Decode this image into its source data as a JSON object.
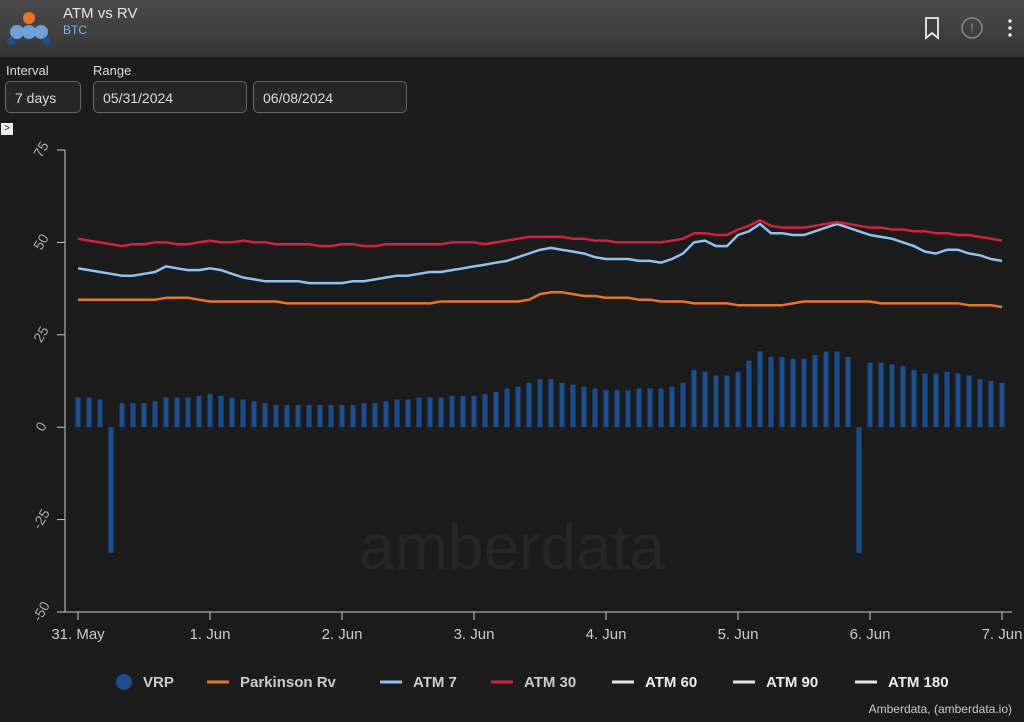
{
  "header": {
    "title": "ATM vs RV",
    "subtitle": "BTC"
  },
  "controls": {
    "interval_label": "Interval",
    "interval_value": "7 days",
    "range_label": "Range",
    "range_start": "05/31/2024",
    "range_end": "06/08/2024"
  },
  "watermark": "amberdata",
  "credit": "Amberdata, (amberdata.io)",
  "chart_data": {
    "type": "bar-line",
    "categories": [
      "31. May",
      null,
      null,
      null,
      null,
      null,
      null,
      null,
      null,
      null,
      null,
      null,
      "1. Jun",
      null,
      null,
      null,
      null,
      null,
      null,
      null,
      null,
      null,
      null,
      null,
      "2. Jun",
      null,
      null,
      null,
      null,
      null,
      null,
      null,
      null,
      null,
      null,
      null,
      "3. Jun",
      null,
      null,
      null,
      null,
      null,
      null,
      null,
      null,
      null,
      null,
      null,
      "4. Jun",
      null,
      null,
      null,
      null,
      null,
      null,
      null,
      null,
      null,
      null,
      null,
      "5. Jun",
      null,
      null,
      null,
      null,
      null,
      null,
      null,
      null,
      null,
      null,
      null,
      "6. Jun",
      null,
      null,
      null,
      null,
      null,
      null,
      null,
      null,
      null,
      null,
      null,
      "7. Jun"
    ],
    "ylim": [
      -50,
      75
    ],
    "yticks": [
      -50,
      -25,
      0,
      25,
      50,
      75
    ],
    "grid": false,
    "series": [
      {
        "name": "VRP",
        "type": "bar",
        "color": "#1c4f8f",
        "values": [
          8,
          8,
          7.5,
          -34,
          6.5,
          6.5,
          6.5,
          7,
          8,
          8,
          8,
          8.5,
          9,
          8.5,
          8,
          7.5,
          7,
          6.5,
          6,
          6,
          6,
          6,
          6,
          6,
          6,
          6,
          6.5,
          6.5,
          7,
          7.5,
          7.5,
          8,
          8,
          8,
          8.5,
          8.5,
          8.5,
          9,
          9.5,
          10.5,
          11,
          12,
          13,
          13,
          12,
          11.5,
          11,
          10.5,
          10,
          10,
          10,
          10.5,
          10.5,
          10.5,
          11,
          12,
          15.5,
          15,
          14,
          14,
          15,
          18,
          20.5,
          19,
          19,
          18.5,
          18.5,
          19.5,
          20.5,
          20.5,
          19,
          -34,
          17.5,
          17.5,
          17,
          16.5,
          15.5,
          14.5,
          14.5,
          15,
          14.5,
          14,
          13,
          12.5,
          12
        ]
      },
      {
        "name": "Parkinson Rv",
        "type": "line",
        "color": "#e8742a",
        "values": [
          34.5,
          34.5,
          34.5,
          34.5,
          34.5,
          34.5,
          34.5,
          34.5,
          35,
          35,
          35,
          34.5,
          34,
          34,
          34,
          34,
          34,
          34,
          34,
          33.5,
          33.5,
          33.5,
          33.5,
          33.5,
          33.5,
          33.5,
          33.5,
          33.5,
          33.5,
          33.5,
          33.5,
          33.5,
          33.5,
          34,
          34,
          34,
          34,
          34,
          34,
          34,
          34,
          34.5,
          36,
          36.5,
          36.5,
          36,
          35.5,
          35.5,
          35,
          35,
          35,
          34.5,
          34.5,
          34,
          34,
          34,
          33.5,
          33.5,
          33.5,
          33.5,
          33,
          33,
          33,
          33,
          33,
          33.5,
          34,
          34,
          34,
          34,
          34,
          34,
          34,
          33.5,
          33.5,
          33.5,
          33.5,
          33.5,
          33.5,
          33.5,
          33.5,
          33,
          33,
          33,
          32.5
        ]
      },
      {
        "name": "ATM 7",
        "type": "line",
        "color": "#8ec2f5",
        "values": [
          43,
          42.5,
          42,
          41.5,
          41,
          41,
          41.5,
          42,
          43.5,
          43,
          42.5,
          42.5,
          43,
          42.5,
          41.5,
          40.5,
          40,
          39.5,
          39.5,
          39.5,
          39.5,
          39,
          39,
          39,
          39,
          39.5,
          39.5,
          40,
          40.5,
          41,
          41,
          41.5,
          42,
          42,
          42.5,
          43,
          43.5,
          44,
          44.5,
          45,
          46,
          47,
          48,
          48.5,
          48,
          47.5,
          47,
          46,
          45.5,
          45.5,
          45.5,
          45,
          45,
          44.5,
          45.5,
          47,
          50,
          50.5,
          49,
          49,
          52,
          53,
          55,
          52.5,
          52.5,
          52,
          52,
          53,
          54,
          55,
          54,
          53,
          52,
          51.5,
          51,
          50,
          49,
          47.5,
          47,
          48,
          48,
          47,
          46.5,
          45.5,
          45
        ]
      },
      {
        "name": "ATM 30",
        "type": "line",
        "color": "#d81f3c",
        "values": [
          51,
          50.5,
          50,
          49.5,
          49,
          49.5,
          49.5,
          50,
          50,
          49.5,
          49.5,
          50,
          50.5,
          50,
          50,
          50.5,
          50,
          50,
          49.5,
          49.5,
          49.5,
          49.5,
          49,
          49,
          49.5,
          49.5,
          49,
          49,
          49.5,
          49.5,
          49.5,
          49.5,
          49.5,
          49.5,
          50,
          50,
          50,
          49.5,
          50,
          50.5,
          51,
          51.5,
          51.5,
          51.5,
          51.5,
          51,
          51,
          50.5,
          50.5,
          50,
          50,
          50,
          50,
          50,
          50.5,
          51,
          52.5,
          52.5,
          52,
          52,
          53.5,
          54.5,
          56,
          54.5,
          54,
          54,
          54,
          54.5,
          55,
          55.5,
          55,
          54.5,
          54,
          54,
          53.5,
          53.5,
          53,
          53,
          52.5,
          52.5,
          52,
          52,
          51.5,
          51,
          50.5
        ]
      },
      {
        "name": "ATM 60",
        "type": "line",
        "color": "#e6e6e6",
        "values": [
          null,
          null,
          null,
          null,
          null,
          null,
          null,
          null,
          null,
          null,
          null,
          null,
          null,
          null,
          null,
          null,
          null,
          null,
          null,
          null,
          null,
          null,
          null,
          null,
          null,
          null,
          null,
          null,
          null,
          null,
          null,
          null,
          null,
          null,
          null,
          null,
          null,
          null,
          null,
          null,
          null,
          null,
          null,
          null,
          null,
          null,
          null,
          null,
          null,
          null,
          null,
          null,
          null,
          null,
          null,
          null,
          null,
          null,
          null,
          null,
          null,
          null,
          null,
          null,
          null,
          null,
          null,
          null,
          null,
          null,
          null,
          null,
          null,
          null,
          null,
          null,
          null,
          null,
          null,
          null,
          null,
          null,
          null,
          null,
          null
        ]
      },
      {
        "name": "ATM 90",
        "type": "line",
        "color": "#e6e6e6",
        "values": [
          null,
          null,
          null,
          null,
          null,
          null,
          null,
          null,
          null,
          null,
          null,
          null,
          null,
          null,
          null,
          null,
          null,
          null,
          null,
          null,
          null,
          null,
          null,
          null,
          null,
          null,
          null,
          null,
          null,
          null,
          null,
          null,
          null,
          null,
          null,
          null,
          null,
          null,
          null,
          null,
          null,
          null,
          null,
          null,
          null,
          null,
          null,
          null,
          null,
          null,
          null,
          null,
          null,
          null,
          null,
          null,
          null,
          null,
          null,
          null,
          null,
          null,
          null,
          null,
          null,
          null,
          null,
          null,
          null,
          null,
          null,
          null,
          null,
          null,
          null,
          null,
          null,
          null,
          null,
          null,
          null,
          null,
          null,
          null,
          null
        ]
      },
      {
        "name": "ATM 180",
        "type": "line",
        "color": "#e6e6e6",
        "values": [
          null,
          null,
          null,
          null,
          null,
          null,
          null,
          null,
          null,
          null,
          null,
          null,
          null,
          null,
          null,
          null,
          null,
          null,
          null,
          null,
          null,
          null,
          null,
          null,
          null,
          null,
          null,
          null,
          null,
          null,
          null,
          null,
          null,
          null,
          null,
          null,
          null,
          null,
          null,
          null,
          null,
          null,
          null,
          null,
          null,
          null,
          null,
          null,
          null,
          null,
          null,
          null,
          null,
          null,
          null,
          null,
          null,
          null,
          null,
          null,
          null,
          null,
          null,
          null,
          null,
          null,
          null,
          null,
          null,
          null,
          null,
          null,
          null,
          null,
          null,
          null,
          null,
          null,
          null,
          null,
          null,
          null,
          null,
          null,
          null
        ]
      }
    ]
  }
}
